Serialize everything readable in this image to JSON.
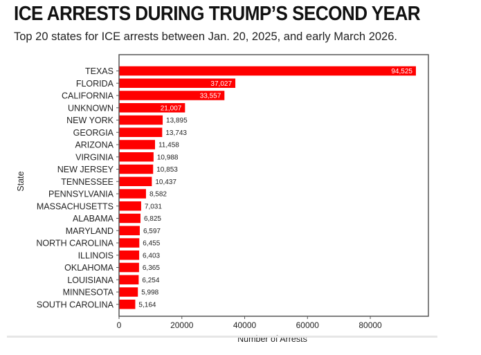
{
  "header": {
    "title": "ICE ARRESTS DURING TRUMP’S SECOND YEAR",
    "subtitle": "Top 20 states for ICE arrests between Jan. 20, 2025, and early March 2026."
  },
  "colors": {
    "bar": "#ff0000",
    "axis": "#555555",
    "text": "#222222"
  },
  "chart_data": {
    "type": "bar",
    "orientation": "horizontal",
    "title": "ICE ARRESTS DURING TRUMP’S SECOND YEAR",
    "subtitle": "Top 20 states for ICE arrests between Jan. 20, 2025, and early March 2026.",
    "xlabel": "Number of Arrests",
    "ylabel": "State",
    "xlim": [
      0,
      98500
    ],
    "xticks": [
      0,
      20000,
      40000,
      60000,
      80000
    ],
    "xtick_labels": [
      "0",
      "20000",
      "40000",
      "60000",
      "80000"
    ],
    "grid": false,
    "legend": "none",
    "categories": [
      "TEXAS",
      "FLORIDA",
      "CALIFORNIA",
      "UNKNOWN",
      "NEW YORK",
      "GEORGIA",
      "ARIZONA",
      "VIRGINIA",
      "NEW JERSEY",
      "TENNESSEE",
      "PENNSYLVANIA",
      "MASSACHUSETTS",
      "ALABAMA",
      "MARYLAND",
      "NORTH CAROLINA",
      "ILLINOIS",
      "OKLAHOMA",
      "LOUISIANA",
      "MINNESOTA",
      "SOUTH CAROLINA"
    ],
    "values": [
      94525,
      37027,
      33557,
      21007,
      13895,
      13743,
      11458,
      10988,
      10853,
      10437,
      8582,
      7031,
      6825,
      6597,
      6455,
      6403,
      6365,
      6254,
      5998,
      5164
    ],
    "value_labels": [
      "94,525",
      "37,027",
      "33,557",
      "21,007",
      "13,895",
      "13,743",
      "11,458",
      "10,988",
      "10,853",
      "10,437",
      "8,582",
      "7,031",
      "6,825",
      "6,597",
      "6,455",
      "6,403",
      "6,365",
      "6,254",
      "5,998",
      "5,164"
    ],
    "labels_inside_threshold": 20000
  }
}
